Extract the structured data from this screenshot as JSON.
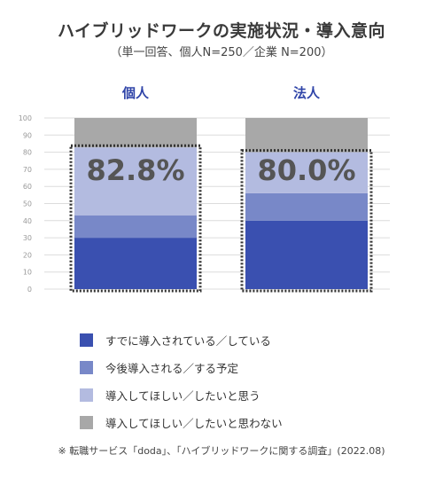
{
  "title": "ハイブリッドワークの実施状況・導入意向",
  "subtitle": "（単一回答、個人N=250／企業 N=200）",
  "footnote": "※ 転職サービス「doda」、「ハイブリッドワークに関する調査」(2022.08)",
  "colors": {
    "implemented": "#3a50b0",
    "planned": "#7888c8",
    "want": "#b3bbe0",
    "not_want": "#a8a8a8",
    "category_label": "#2f44a8",
    "highlight_text": "#555555"
  },
  "chart_data": {
    "type": "bar",
    "stacked": true,
    "categories": [
      "個人",
      "法人"
    ],
    "ylim": [
      0,
      100
    ],
    "yticks": [
      0,
      10,
      20,
      30,
      40,
      50,
      60,
      70,
      80,
      90,
      100
    ],
    "grid": true,
    "legend_position": "bottom",
    "series": [
      {
        "name": "すでに導入されている／している",
        "color_key": "implemented",
        "values": [
          30,
          40
        ]
      },
      {
        "name": "今後導入される／する予定",
        "color_key": "planned",
        "values": [
          13,
          16
        ]
      },
      {
        "name": "導入してほしい／したいと思う",
        "color_key": "want",
        "values": [
          39.8,
          24
        ]
      },
      {
        "name": "導入してほしい／したいと思わない",
        "color_key": "not_want",
        "values": [
          17.2,
          20
        ]
      }
    ],
    "highlight_labels": [
      "82.8%",
      "80.0%"
    ],
    "highlight_values": [
      82.8,
      80.0
    ]
  }
}
